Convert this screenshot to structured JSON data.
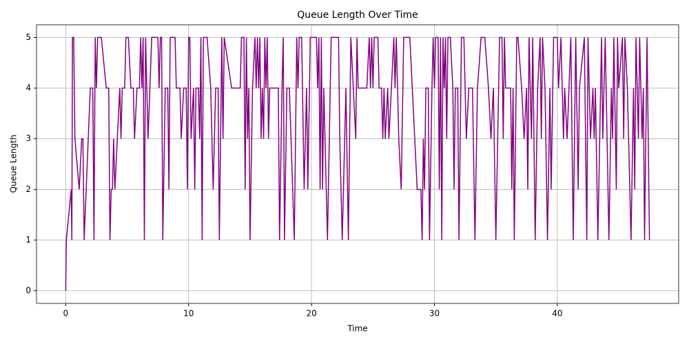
{
  "chart_data": {
    "type": "line",
    "title": "Queue Length Over Time",
    "x_label": "Time",
    "y_label": "Queue Length",
    "x": [
      0,
      0.05,
      0.45,
      0.5,
      0.55,
      0.65,
      0.75,
      1.1,
      1.3,
      1.4,
      1.5,
      2.0,
      2.2,
      2.3,
      2.4,
      2.5,
      2.6,
      2.9,
      3.3,
      3.5,
      3.6,
      3.7,
      3.8,
      3.9,
      4.0,
      4.4,
      4.5,
      4.6,
      4.8,
      4.9,
      5.1,
      5.3,
      5.5,
      5.6,
      5.8,
      6.0,
      6.1,
      6.2,
      6.3,
      6.4,
      6.5,
      6.6,
      6.7,
      7.0,
      7.2,
      7.5,
      7.6,
      7.7,
      7.8,
      7.9,
      8.1,
      8.3,
      8.4,
      8.5,
      8.9,
      9.0,
      9.3,
      9.4,
      9.6,
      9.8,
      9.9,
      10.0,
      10.1,
      10.2,
      10.4,
      10.5,
      10.6,
      10.8,
      10.9,
      11.0,
      11.1,
      11.2,
      11.5,
      11.8,
      12.0,
      12.2,
      12.4,
      12.5,
      12.7,
      12.8,
      12.9,
      13.5,
      14.0,
      14.2,
      14.3,
      14.5,
      14.6,
      14.7,
      14.8,
      14.9,
      15.0,
      15.2,
      15.4,
      15.5,
      15.6,
      15.7,
      15.8,
      15.9,
      16.0,
      16.1,
      16.2,
      16.3,
      16.4,
      16.5,
      16.6,
      17.0,
      17.3,
      17.4,
      17.6,
      17.7,
      17.8,
      18.0,
      18.2,
      18.6,
      18.8,
      18.9,
      19.0,
      19.2,
      19.4,
      19.6,
      19.7,
      19.9,
      20.4,
      20.5,
      20.6,
      20.7,
      20.8,
      20.9,
      21.0,
      21.1,
      21.3,
      21.6,
      22.2,
      22.3,
      22.5,
      22.8,
      23.0,
      23.2,
      23.6,
      23.7,
      23.8,
      24.3,
      24.5,
      24.7,
      24.8,
      24.9,
      25.0,
      25.1,
      25.4,
      25.5,
      25.7,
      25.8,
      25.9,
      26.0,
      26.2,
      26.3,
      26.5,
      26.7,
      26.8,
      26.9,
      27.1,
      27.3,
      27.5,
      27.6,
      28.0,
      28.2,
      28.4,
      28.6,
      28.9,
      29.0,
      29.1,
      29.2,
      29.3,
      29.5,
      29.6,
      29.8,
      29.9,
      30.0,
      30.1,
      30.3,
      30.4,
      30.5,
      30.6,
      30.7,
      30.8,
      30.9,
      31.0,
      31.1,
      31.3,
      31.5,
      31.6,
      31.7,
      31.9,
      32.0,
      32.2,
      32.4,
      32.6,
      32.8,
      33.1,
      33.3,
      33.5,
      33.8,
      34.1,
      34.4,
      34.6,
      34.8,
      35.0,
      35.3,
      35.5,
      35.6,
      35.7,
      35.8,
      36.2,
      36.3,
      36.4,
      36.5,
      36.7,
      36.8,
      37.1,
      37.3,
      37.5,
      37.6,
      37.7,
      37.9,
      38.0,
      38.2,
      38.4,
      38.6,
      38.7,
      38.8,
      39.0,
      39.2,
      39.4,
      39.5,
      39.7,
      40.0,
      40.1,
      40.3,
      40.5,
      40.6,
      40.8,
      41.1,
      41.3,
      41.5,
      41.7,
      41.8,
      42.2,
      42.4,
      42.5,
      42.7,
      42.9,
      43.0,
      43.1,
      43.3,
      43.6,
      43.7,
      43.9,
      44.2,
      44.4,
      44.5,
      44.6,
      44.8,
      44.9,
      45.0,
      45.3,
      45.4,
      45.5,
      45.7,
      46.0,
      46.2,
      46.3,
      46.4,
      46.5,
      46.6,
      46.7,
      46.9,
      47.0,
      47.1,
      47.3,
      47.4,
      47.5
    ],
    "series": [
      {
        "color": "purple",
        "values": [
          0,
          1,
          2,
          1,
          5,
          5,
          3,
          2,
          3,
          3,
          1,
          4,
          4,
          1,
          5,
          4,
          5,
          5,
          4,
          4,
          1,
          2,
          2,
          3,
          2,
          4,
          3,
          4,
          4,
          5,
          5,
          4,
          4,
          3,
          4,
          4,
          5,
          4,
          5,
          1,
          5,
          4,
          3,
          5,
          5,
          5,
          4,
          5,
          5,
          1,
          4,
          4,
          2,
          5,
          5,
          4,
          4,
          3,
          4,
          4,
          2,
          5,
          5,
          3,
          4,
          2,
          4,
          4,
          3,
          5,
          1,
          5,
          5,
          4,
          2,
          4,
          4,
          1,
          5,
          3,
          5,
          4,
          4,
          4,
          5,
          5,
          2,
          5,
          3,
          4,
          1,
          4,
          5,
          4,
          5,
          4,
          5,
          3,
          4,
          3,
          5,
          4,
          5,
          3,
          4,
          4,
          4,
          1,
          4,
          5,
          1,
          4,
          4,
          1,
          5,
          4,
          5,
          5,
          2,
          4,
          2,
          5,
          5,
          4,
          5,
          2,
          5,
          2,
          4,
          3,
          1,
          5,
          5,
          3,
          1,
          4,
          1,
          5,
          3,
          5,
          4,
          4,
          4,
          5,
          4,
          5,
          4,
          5,
          5,
          4,
          4,
          3,
          4,
          3,
          4,
          3,
          4,
          5,
          4,
          5,
          3,
          2,
          5,
          5,
          5,
          4,
          3,
          2,
          2,
          1,
          3,
          2,
          4,
          4,
          1,
          4,
          5,
          4,
          5,
          5,
          2,
          5,
          1,
          5,
          4,
          5,
          3,
          5,
          5,
          4,
          2,
          4,
          4,
          1,
          5,
          5,
          3,
          4,
          4,
          1,
          4,
          5,
          5,
          4,
          3,
          4,
          1,
          5,
          5,
          3,
          5,
          4,
          4,
          2,
          4,
          1,
          5,
          5,
          4,
          3,
          4,
          2,
          5,
          3,
          5,
          1,
          4,
          5,
          3,
          5,
          4,
          1,
          4,
          2,
          5,
          5,
          4,
          5,
          3,
          4,
          3,
          5,
          1,
          5,
          2,
          4,
          5,
          1,
          5,
          3,
          4,
          3,
          4,
          1,
          5,
          3,
          5,
          1,
          4,
          3,
          5,
          2,
          5,
          4,
          5,
          3,
          5,
          4,
          1,
          4,
          2,
          5,
          4,
          3,
          5,
          3,
          4,
          1,
          5,
          3,
          1
        ]
      }
    ],
    "xlim": [
      -2.375,
      49.875
    ],
    "ylim": [
      -0.25,
      5.25
    ],
    "xticks": [
      0,
      10,
      20,
      30,
      40
    ],
    "yticks": [
      0,
      1,
      2,
      3,
      4,
      5
    ],
    "grid": true
  }
}
